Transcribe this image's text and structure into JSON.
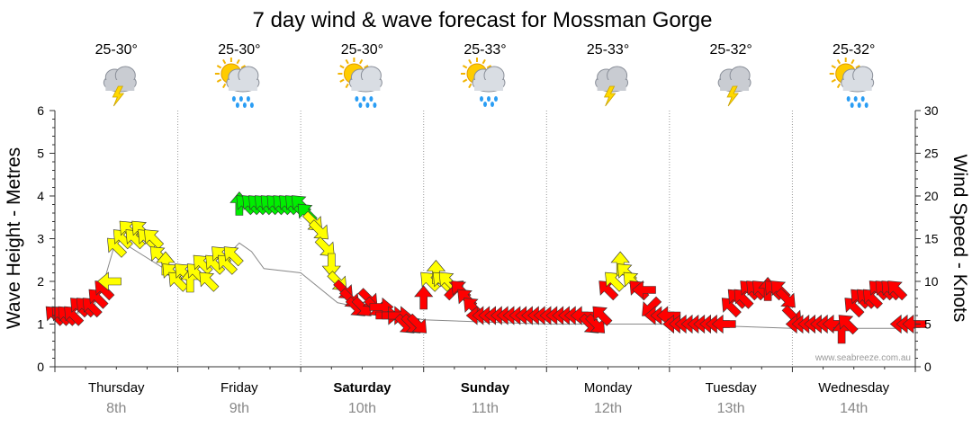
{
  "title": "7 day wind & wave forecast for Mossman Gorge",
  "watermark": "www.seabreeze.com.au",
  "days": [
    {
      "name": "Thursday",
      "date": "8th",
      "bold": false,
      "temp": "25-30°",
      "weather": "storm-cloud-icon"
    },
    {
      "name": "Friday",
      "date": "9th",
      "bold": false,
      "temp": "25-30°",
      "weather": "sun-rain-icon"
    },
    {
      "name": "Saturday",
      "date": "10th",
      "bold": true,
      "temp": "25-30°",
      "weather": "sun-rain-icon"
    },
    {
      "name": "Sunday",
      "date": "11th",
      "bold": true,
      "temp": "25-33°",
      "weather": "sun-showers-icon"
    },
    {
      "name": "Monday",
      "date": "12th",
      "bold": false,
      "temp": "25-33°",
      "weather": "storm-cloud-icon"
    },
    {
      "name": "Tuesday",
      "date": "13th",
      "bold": false,
      "temp": "25-32°",
      "weather": "storm-cloud-icon"
    },
    {
      "name": "Wednesday",
      "date": "14th",
      "bold": false,
      "temp": "25-32°",
      "weather": "sun-rain-icon"
    }
  ],
  "colors": {
    "strong": "#ff0000",
    "moderate": "#ffff00",
    "light": "#00ee00",
    "grid": "#999999",
    "wave_line": "#888888"
  },
  "chart_data": {
    "type": "line",
    "y_left": {
      "label": "Wave Height - Metres",
      "range": [
        0,
        6
      ],
      "ticks": [
        0,
        1,
        2,
        3,
        4,
        5,
        6
      ]
    },
    "y_right": {
      "label": "Wind Speed - Knots",
      "range": [
        0,
        30
      ],
      "ticks": [
        0,
        5,
        10,
        15,
        20,
        25,
        30
      ]
    },
    "x_range_days": [
      0,
      7
    ],
    "series": [
      {
        "name": "Wind Speed - Knots",
        "color_bands": {
          "green_min": 18,
          "yellow_min": 10
        },
        "points": [
          {
            "t": 0.0,
            "kts": 6,
            "dir": "SE"
          },
          {
            "t": 0.05,
            "kts": 6,
            "dir": "SE"
          },
          {
            "t": 0.1,
            "kts": 6,
            "dir": "SE"
          },
          {
            "t": 0.15,
            "kts": 6,
            "dir": "SE"
          },
          {
            "t": 0.2,
            "kts": 7,
            "dir": "SE"
          },
          {
            "t": 0.25,
            "kts": 7,
            "dir": "SE"
          },
          {
            "t": 0.3,
            "kts": 7,
            "dir": "SE"
          },
          {
            "t": 0.35,
            "kts": 8,
            "dir": "SE"
          },
          {
            "t": 0.4,
            "kts": 9,
            "dir": "SE"
          },
          {
            "t": 0.45,
            "kts": 10,
            "dir": "E"
          },
          {
            "t": 0.5,
            "kts": 14,
            "dir": "SE"
          },
          {
            "t": 0.55,
            "kts": 15,
            "dir": "SE"
          },
          {
            "t": 0.6,
            "kts": 16,
            "dir": "SE"
          },
          {
            "t": 0.65,
            "kts": 15,
            "dir": "SE"
          },
          {
            "t": 0.7,
            "kts": 16,
            "dir": "SE"
          },
          {
            "t": 0.75,
            "kts": 15,
            "dir": "SE"
          },
          {
            "t": 0.8,
            "kts": 15,
            "dir": "SE"
          },
          {
            "t": 0.85,
            "kts": 13,
            "dir": "SE"
          },
          {
            "t": 0.9,
            "kts": 12,
            "dir": "S"
          },
          {
            "t": 0.95,
            "kts": 11,
            "dir": "SE"
          },
          {
            "t": 1.0,
            "kts": 10,
            "dir": "SE"
          },
          {
            "t": 1.05,
            "kts": 11,
            "dir": "SE"
          },
          {
            "t": 1.1,
            "kts": 10,
            "dir": "S"
          },
          {
            "t": 1.15,
            "kts": 11,
            "dir": "SE"
          },
          {
            "t": 1.2,
            "kts": 12,
            "dir": "SE"
          },
          {
            "t": 1.25,
            "kts": 10,
            "dir": "SE"
          },
          {
            "t": 1.3,
            "kts": 12,
            "dir": "SE"
          },
          {
            "t": 1.35,
            "kts": 13,
            "dir": "SE"
          },
          {
            "t": 1.4,
            "kts": 12,
            "dir": "SE"
          },
          {
            "t": 1.45,
            "kts": 13,
            "dir": "SE"
          },
          {
            "t": 1.5,
            "kts": 19,
            "dir": "S"
          },
          {
            "t": 1.55,
            "kts": 19,
            "dir": "SE"
          },
          {
            "t": 1.6,
            "kts": 19,
            "dir": "SE"
          },
          {
            "t": 1.65,
            "kts": 19,
            "dir": "SE"
          },
          {
            "t": 1.7,
            "kts": 19,
            "dir": "SE"
          },
          {
            "t": 1.75,
            "kts": 19,
            "dir": "SE"
          },
          {
            "t": 1.8,
            "kts": 19,
            "dir": "SE"
          },
          {
            "t": 1.85,
            "kts": 19,
            "dir": "SE"
          },
          {
            "t": 1.9,
            "kts": 19,
            "dir": "SE"
          },
          {
            "t": 1.95,
            "kts": 19,
            "dir": "SE"
          },
          {
            "t": 2.0,
            "kts": 19,
            "dir": "SE"
          },
          {
            "t": 2.05,
            "kts": 18,
            "dir": "SE"
          },
          {
            "t": 2.1,
            "kts": 17,
            "dir": "NW"
          },
          {
            "t": 2.15,
            "kts": 16,
            "dir": "NW"
          },
          {
            "t": 2.2,
            "kts": 14,
            "dir": "NW"
          },
          {
            "t": 2.25,
            "kts": 12,
            "dir": "N"
          },
          {
            "t": 2.3,
            "kts": 10,
            "dir": "NW"
          },
          {
            "t": 2.35,
            "kts": 9,
            "dir": "NW"
          },
          {
            "t": 2.4,
            "kts": 8,
            "dir": "NW"
          },
          {
            "t": 2.45,
            "kts": 7,
            "dir": "NW"
          },
          {
            "t": 2.5,
            "kts": 7,
            "dir": "NW"
          },
          {
            "t": 2.55,
            "kts": 8,
            "dir": "NW"
          },
          {
            "t": 2.6,
            "kts": 7,
            "dir": "NW"
          },
          {
            "t": 2.65,
            "kts": 7,
            "dir": "W"
          },
          {
            "t": 2.7,
            "kts": 6,
            "dir": "W"
          },
          {
            "t": 2.75,
            "kts": 6,
            "dir": "W"
          },
          {
            "t": 2.8,
            "kts": 6,
            "dir": "W"
          },
          {
            "t": 2.85,
            "kts": 5,
            "dir": "NW"
          },
          {
            "t": 2.9,
            "kts": 5,
            "dir": "NW"
          },
          {
            "t": 2.95,
            "kts": 5,
            "dir": "NW"
          },
          {
            "t": 3.0,
            "kts": 8,
            "dir": "S"
          },
          {
            "t": 3.05,
            "kts": 10,
            "dir": "SE"
          },
          {
            "t": 3.1,
            "kts": 11,
            "dir": "S"
          },
          {
            "t": 3.15,
            "kts": 10,
            "dir": "SE"
          },
          {
            "t": 3.2,
            "kts": 10,
            "dir": "SE"
          },
          {
            "t": 3.25,
            "kts": 9,
            "dir": "SW"
          },
          {
            "t": 3.3,
            "kts": 9,
            "dir": "SE"
          },
          {
            "t": 3.35,
            "kts": 8,
            "dir": "SE"
          },
          {
            "t": 3.4,
            "kts": 7,
            "dir": "SE"
          },
          {
            "t": 3.45,
            "kts": 6,
            "dir": "E"
          },
          {
            "t": 3.5,
            "kts": 6,
            "dir": "E"
          },
          {
            "t": 3.55,
            "kts": 6,
            "dir": "E"
          },
          {
            "t": 3.6,
            "kts": 6,
            "dir": "E"
          },
          {
            "t": 3.65,
            "kts": 6,
            "dir": "E"
          },
          {
            "t": 3.7,
            "kts": 6,
            "dir": "E"
          },
          {
            "t": 3.75,
            "kts": 6,
            "dir": "E"
          },
          {
            "t": 3.8,
            "kts": 6,
            "dir": "E"
          },
          {
            "t": 3.85,
            "kts": 6,
            "dir": "E"
          },
          {
            "t": 3.9,
            "kts": 6,
            "dir": "E"
          },
          {
            "t": 3.95,
            "kts": 6,
            "dir": "E"
          },
          {
            "t": 4.0,
            "kts": 6,
            "dir": "E"
          },
          {
            "t": 4.05,
            "kts": 6,
            "dir": "E"
          },
          {
            "t": 4.1,
            "kts": 6,
            "dir": "E"
          },
          {
            "t": 4.15,
            "kts": 6,
            "dir": "E"
          },
          {
            "t": 4.2,
            "kts": 6,
            "dir": "E"
          },
          {
            "t": 4.25,
            "kts": 6,
            "dir": "E"
          },
          {
            "t": 4.3,
            "kts": 6,
            "dir": "E"
          },
          {
            "t": 4.35,
            "kts": 5,
            "dir": "NW"
          },
          {
            "t": 4.4,
            "kts": 5,
            "dir": "NW"
          },
          {
            "t": 4.45,
            "kts": 6,
            "dir": "SE"
          },
          {
            "t": 4.5,
            "kts": 9,
            "dir": "SE"
          },
          {
            "t": 4.55,
            "kts": 10,
            "dir": "SE"
          },
          {
            "t": 4.6,
            "kts": 12,
            "dir": "S"
          },
          {
            "t": 4.65,
            "kts": 11,
            "dir": "SE"
          },
          {
            "t": 4.7,
            "kts": 10,
            "dir": "SE"
          },
          {
            "t": 4.75,
            "kts": 9,
            "dir": "SE"
          },
          {
            "t": 4.8,
            "kts": 9,
            "dir": "E"
          },
          {
            "t": 4.85,
            "kts": 7,
            "dir": "NE"
          },
          {
            "t": 4.9,
            "kts": 6,
            "dir": "E"
          },
          {
            "t": 4.95,
            "kts": 6,
            "dir": "E"
          },
          {
            "t": 5.0,
            "kts": 6,
            "dir": "E"
          },
          {
            "t": 5.05,
            "kts": 5,
            "dir": "E"
          },
          {
            "t": 5.1,
            "kts": 5,
            "dir": "E"
          },
          {
            "t": 5.15,
            "kts": 5,
            "dir": "E"
          },
          {
            "t": 5.2,
            "kts": 5,
            "dir": "E"
          },
          {
            "t": 5.25,
            "kts": 5,
            "dir": "E"
          },
          {
            "t": 5.3,
            "kts": 5,
            "dir": "E"
          },
          {
            "t": 5.35,
            "kts": 5,
            "dir": "E"
          },
          {
            "t": 5.4,
            "kts": 5,
            "dir": "E"
          },
          {
            "t": 5.45,
            "kts": 5,
            "dir": "E"
          },
          {
            "t": 5.5,
            "kts": 7,
            "dir": "SE"
          },
          {
            "t": 5.55,
            "kts": 8,
            "dir": "SE"
          },
          {
            "t": 5.6,
            "kts": 8,
            "dir": "SE"
          },
          {
            "t": 5.65,
            "kts": 9,
            "dir": "SE"
          },
          {
            "t": 5.7,
            "kts": 9,
            "dir": "SE"
          },
          {
            "t": 5.75,
            "kts": 9,
            "dir": "SE"
          },
          {
            "t": 5.8,
            "kts": 9,
            "dir": "S"
          },
          {
            "t": 5.85,
            "kts": 9,
            "dir": "SE"
          },
          {
            "t": 5.9,
            "kts": 9,
            "dir": "SE"
          },
          {
            "t": 5.95,
            "kts": 8,
            "dir": "NW"
          },
          {
            "t": 6.0,
            "kts": 6,
            "dir": "NW"
          },
          {
            "t": 6.05,
            "kts": 5,
            "dir": "E"
          },
          {
            "t": 6.1,
            "kts": 5,
            "dir": "E"
          },
          {
            "t": 6.15,
            "kts": 5,
            "dir": "E"
          },
          {
            "t": 6.2,
            "kts": 5,
            "dir": "E"
          },
          {
            "t": 6.25,
            "kts": 5,
            "dir": "E"
          },
          {
            "t": 6.3,
            "kts": 5,
            "dir": "E"
          },
          {
            "t": 6.35,
            "kts": 5,
            "dir": "E"
          },
          {
            "t": 6.4,
            "kts": 4,
            "dir": "S"
          },
          {
            "t": 6.45,
            "kts": 5,
            "dir": "SE"
          },
          {
            "t": 6.5,
            "kts": 7,
            "dir": "SE"
          },
          {
            "t": 6.55,
            "kts": 8,
            "dir": "SE"
          },
          {
            "t": 6.6,
            "kts": 8,
            "dir": "SE"
          },
          {
            "t": 6.65,
            "kts": 8,
            "dir": "SE"
          },
          {
            "t": 6.7,
            "kts": 9,
            "dir": "SE"
          },
          {
            "t": 6.75,
            "kts": 9,
            "dir": "SE"
          },
          {
            "t": 6.8,
            "kts": 9,
            "dir": "SE"
          },
          {
            "t": 6.85,
            "kts": 9,
            "dir": "SE"
          },
          {
            "t": 6.9,
            "kts": 5,
            "dir": "E"
          },
          {
            "t": 6.95,
            "kts": 5,
            "dir": "E"
          },
          {
            "t": 7.0,
            "kts": 5,
            "dir": "E"
          }
        ]
      },
      {
        "name": "Wave Height - Metres",
        "points": [
          {
            "t": 0.0,
            "m": 1.2
          },
          {
            "t": 0.3,
            "m": 1.3
          },
          {
            "t": 0.4,
            "m": 2.0
          },
          {
            "t": 0.5,
            "m": 3.0
          },
          {
            "t": 1.0,
            "m": 2.1
          },
          {
            "t": 1.1,
            "m": 2.3
          },
          {
            "t": 1.4,
            "m": 2.6
          },
          {
            "t": 1.5,
            "m": 2.9
          },
          {
            "t": 1.6,
            "m": 2.7
          },
          {
            "t": 1.7,
            "m": 2.3
          },
          {
            "t": 2.0,
            "m": 2.2
          },
          {
            "t": 2.3,
            "m": 1.5
          },
          {
            "t": 3.0,
            "m": 1.1
          },
          {
            "t": 4.0,
            "m": 1.0
          },
          {
            "t": 5.0,
            "m": 1.0
          },
          {
            "t": 6.0,
            "m": 0.9
          },
          {
            "t": 7.0,
            "m": 0.9
          }
        ]
      }
    ]
  }
}
